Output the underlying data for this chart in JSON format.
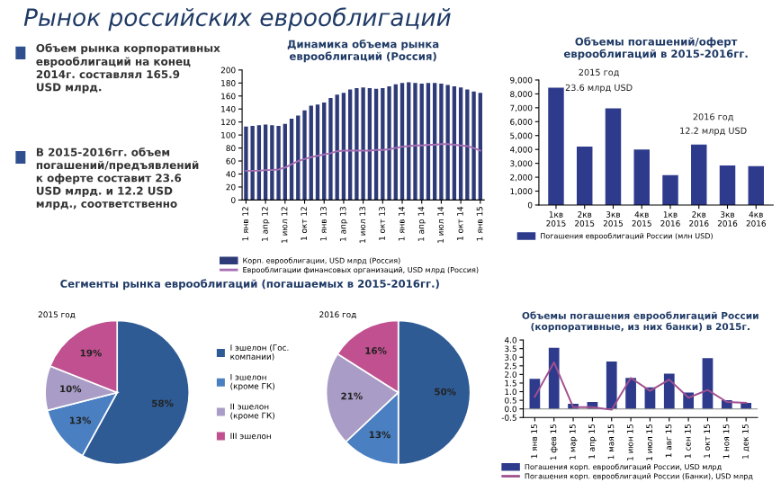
{
  "chart_data": [
    {
      "type": "other",
      "title": "Рынок российских еврооблигаций",
      "annotations": [
        "Объем рынка корпоративных\nеврооблигаций на конец\n2014г. составлял 165.9\nUSD млрд.",
        "В 2015-2016гг. объем\nпогашений/предъявлений\nк оферте составит 23.6\nUSD млрд. и 12.2 USD\nмлрд., соответственно"
      ]
    },
    {
      "type": "bar",
      "title": "Динамика объема рынка\nеврооблигаций (Россия)",
      "categories": [
        "1 янв 12",
        null,
        null,
        "1 апр 12",
        null,
        null,
        "1 июл 12",
        null,
        null,
        "1 окт 12",
        null,
        null,
        "1 янв 13",
        null,
        null,
        "1 апр 13",
        null,
        null,
        "1 июл 13",
        null,
        null,
        "1 окт 13",
        null,
        null,
        "1 янв 14",
        null,
        null,
        "1 апр 14",
        null,
        null,
        "1 июл 14",
        null,
        null,
        "1 окт 14",
        null,
        null,
        "1 янв 15"
      ],
      "series": [
        {
          "name": "Корп. еврооблигации, USD млрд (Россия)",
          "type": "bar",
          "color": "#2e3b78",
          "values": [
            113,
            114,
            115,
            116,
            115,
            114,
            117,
            125,
            130,
            138,
            145,
            147,
            150,
            157,
            162,
            165,
            170,
            172,
            173,
            172,
            171,
            172,
            175,
            178,
            180,
            181,
            180,
            179,
            180,
            180,
            179,
            177,
            175,
            173,
            170,
            167,
            165
          ]
        },
        {
          "name": "Еврооблигации финансовых организаций, USD млрд (Россия)",
          "type": "line",
          "color": "#a66fb3",
          "values": [
            45,
            45,
            45,
            46,
            46,
            47,
            50,
            55,
            60,
            63,
            66,
            68,
            70,
            72,
            75,
            76,
            76,
            76,
            76,
            76,
            77,
            77,
            78,
            80,
            82,
            83,
            84,
            84,
            85,
            85,
            86,
            86,
            85,
            84,
            83,
            80,
            76
          ]
        }
      ],
      "ylim": [
        0,
        200
      ],
      "yticks": [
        0,
        20,
        40,
        60,
        80,
        100,
        120,
        140,
        160,
        180,
        200
      ],
      "legend": "bottom",
      "marker": "none"
    },
    {
      "type": "bar",
      "title": "Объемы погашений/оферт\nеврооблигаций в 2015-2016гг.",
      "categories": [
        "1кв\n2015",
        "2кв\n2015",
        "3кв\n2015",
        "4кв\n2015",
        "1кв\n2016",
        "2кв\n2016",
        "3кв\n2016",
        "4кв\n2016"
      ],
      "series": [
        {
          "name": "Погашения еврооблигаций России (млн USD)",
          "color": "#2e3b8c",
          "values": [
            8450,
            4200,
            6950,
            4000,
            2150,
            4350,
            2850,
            2800
          ]
        }
      ],
      "ylim": [
        0,
        9000
      ],
      "yticks": [
        {
          "value": 0,
          "label": "0"
        },
        {
          "value": 1000,
          "label": "1,000"
        },
        {
          "value": 2000,
          "label": "2,000"
        },
        {
          "value": 3000,
          "label": "3,000"
        },
        {
          "value": 4000,
          "label": "4,000"
        },
        {
          "value": 5000,
          "label": "5,000"
        },
        {
          "value": 6000,
          "label": "6,000"
        },
        {
          "value": 7000,
          "label": "7,000"
        },
        {
          "value": 8000,
          "label": "8,000"
        },
        {
          "value": 9000,
          "label": "9,000"
        }
      ],
      "annotations": [
        "2015 год",
        "23.6 млрд USD",
        "2016 год",
        "12.2 млрд USD"
      ],
      "legend": "bottom",
      "grid": false
    },
    {
      "type": "pie",
      "title": "Сегменты рынка еврооблигаций (погашаемых в 2015-2016гг.)",
      "subtitle": "2015 год",
      "categories": [
        "I эшелон (Гос.\nкомпании)",
        "I эшелон\n(кроме ГК)",
        "II эшелон\n(кроме ГК)",
        "III эшелон"
      ],
      "values": [
        58,
        13,
        10,
        19
      ],
      "value_labels": [
        "58%",
        "13%",
        "10%",
        "19%"
      ],
      "colors": [
        "#2f5b95",
        "#4a7fc1",
        "#a99cc6",
        "#c0508f"
      ],
      "legend": "right"
    },
    {
      "type": "pie",
      "subtitle": "2016 год",
      "values": [
        50,
        13,
        21,
        16
      ],
      "value_labels": [
        "50%",
        "13%",
        "21%",
        "16%"
      ],
      "colors": [
        "#2f5b95",
        "#4a7fc1",
        "#a99cc6",
        "#c0508f"
      ]
    },
    {
      "type": "bar",
      "title": "Объемы погашения еврооблигаций России\n(корпоративные, из них банки) в 2015г.",
      "categories": [
        "1 янв 15",
        "1 фев 15",
        "1 мар 15",
        "1 апр 15",
        "1 мая 15",
        "1 июн 15",
        "1 июл 15",
        "1 авг 15",
        "1 сен 15",
        "1 окт 15",
        "1 ноя 15",
        "1 дек 15"
      ],
      "series": [
        {
          "name": "Погашения корп. еврооблигаций России, USD млрд",
          "type": "bar",
          "color": "#2e3b8c",
          "values": [
            1.75,
            3.55,
            0.3,
            0.4,
            2.75,
            1.8,
            1.25,
            2.05,
            0.95,
            2.95,
            0.5,
            0.35
          ]
        },
        {
          "name": "Погашения корп. еврооблигаций России (Банки), USD млрд",
          "type": "line",
          "color": "#a0508f",
          "values": [
            0.7,
            2.7,
            0.1,
            0.1,
            -0.05,
            1.8,
            1.05,
            1.7,
            0.65,
            1.1,
            0.4,
            0.35
          ]
        }
      ],
      "ylim": [
        -0.5,
        4.0
      ],
      "yticks": [
        {
          "value": -0.5,
          "label": "-0.5"
        },
        {
          "value": 0,
          "label": "0.0"
        },
        {
          "value": 0.5,
          "label": "0.5"
        },
        {
          "value": 1,
          "label": "1.0"
        },
        {
          "value": 1.5,
          "label": "1.5"
        },
        {
          "value": 2,
          "label": "2.0"
        },
        {
          "value": 2.5,
          "label": "2.5"
        },
        {
          "value": 3,
          "label": "3.0"
        },
        {
          "value": 3.5,
          "label": "3.5"
        },
        {
          "value": 4,
          "label": "4.0"
        }
      ],
      "legend": "bottom",
      "marker": "none"
    }
  ]
}
